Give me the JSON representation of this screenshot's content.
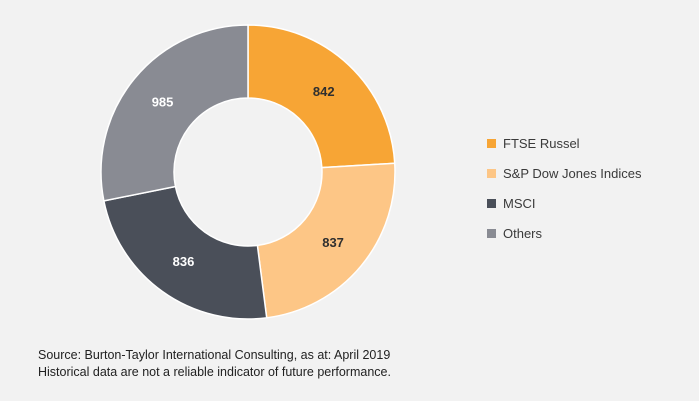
{
  "chart_data": {
    "type": "pie",
    "donut": true,
    "categories": [
      "FTSE Russel",
      "S&P Dow Jones Indices",
      "MSCI",
      "Others"
    ],
    "values": [
      842,
      837,
      836,
      985
    ],
    "label_colors": [
      "#2f2f2f",
      "#2f2f2f",
      "#ffffff",
      "#ffffff"
    ],
    "colors": [
      "#f7a535",
      "#fdc686",
      "#4a4f59",
      "#898b93"
    ],
    "legend_position": "right"
  },
  "footnote": {
    "line1": "Source: Burton-Taylor International Consulting, as at: April 2019",
    "line2": "Historical data are not a reliable indicator of future performance."
  }
}
